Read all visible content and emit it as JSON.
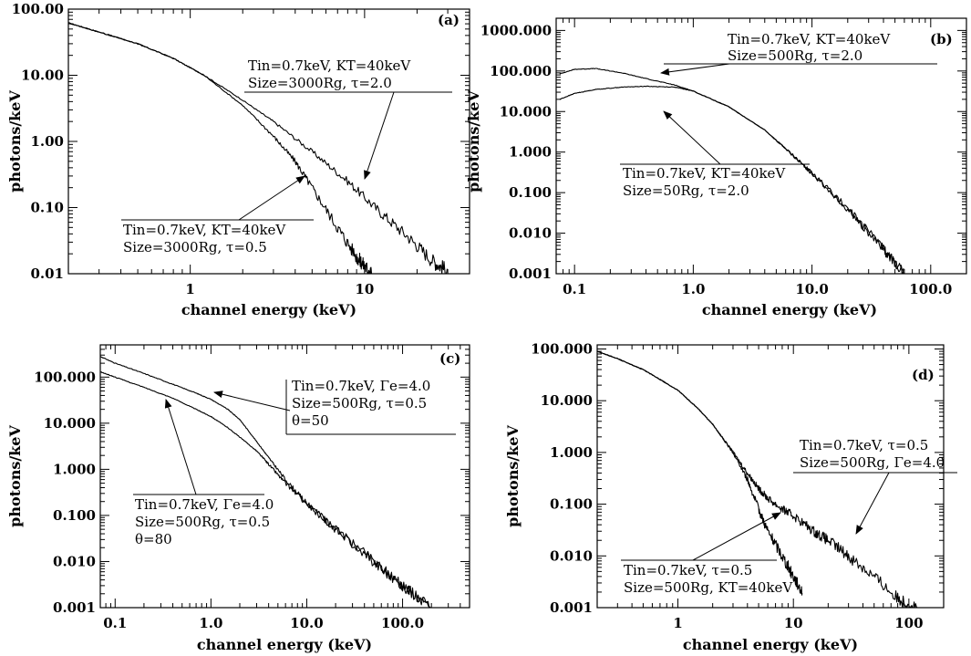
{
  "chart_data": [
    {
      "id": "a",
      "type": "line",
      "panel_label": "(a)",
      "xlabel": "channel energy (keV)",
      "ylabel": "photons/keV",
      "xscale": "log",
      "yscale": "log",
      "xlim": [
        0.2,
        40
      ],
      "ylim": [
        0.01,
        100
      ],
      "xticks": [
        {
          "v": 1,
          "label": "1"
        },
        {
          "v": 10,
          "label": "10"
        }
      ],
      "yticks": [
        {
          "v": 100,
          "label": "100.00"
        },
        {
          "v": 10,
          "label": "10.00"
        },
        {
          "v": 1,
          "label": "1.00"
        },
        {
          "v": 0.1,
          "label": "0.10"
        },
        {
          "v": 0.01,
          "label": "0.01"
        }
      ],
      "series": [
        {
          "x": [
            0.2,
            0.3,
            0.5,
            0.8,
            1.2,
            2,
            3,
            5,
            8,
            12,
            18,
            25,
            30
          ],
          "y": [
            62,
            45,
            30,
            18,
            10,
            4.2,
            2,
            0.7,
            0.25,
            0.09,
            0.035,
            0.015,
            0.011
          ]
        },
        {
          "x": [
            0.2,
            0.3,
            0.5,
            0.8,
            1.2,
            2,
            3,
            4,
            5,
            7,
            9,
            10,
            11
          ],
          "y": [
            62,
            45,
            30,
            18,
            10,
            3.5,
            1.2,
            0.5,
            0.2,
            0.05,
            0.018,
            0.013,
            0.01
          ]
        }
      ],
      "annotations": [
        {
          "lines": [
            "Tin=0.7keV, KT=40keV",
            "Size=3000Rg, τ=2.0"
          ],
          "arrow_to": [
            7.0,
            0.2
          ]
        },
        {
          "lines": [
            "Tin=0.7keV, KT=40keV",
            "Size=3000Rg, τ=0.5"
          ],
          "arrow_to": [
            5.0,
            0.2
          ]
        }
      ]
    },
    {
      "id": "b",
      "type": "line",
      "panel_label": "(b)",
      "xlabel": "channel energy (keV)",
      "ylabel": "photons/keV",
      "xscale": "log",
      "yscale": "log",
      "xlim": [
        0.07,
        200
      ],
      "ylim": [
        0.001,
        2000
      ],
      "xticks": [
        {
          "v": 0.1,
          "label": "0.1"
        },
        {
          "v": 1,
          "label": "1.0"
        },
        {
          "v": 10,
          "label": "10.0"
        },
        {
          "v": 100,
          "label": "100.0"
        }
      ],
      "yticks": [
        {
          "v": 1000,
          "label": "1000.000"
        },
        {
          "v": 100,
          "label": "100.000"
        },
        {
          "v": 10,
          "label": "10.000"
        },
        {
          "v": 1,
          "label": "1.000"
        },
        {
          "v": 0.1,
          "label": "0.100"
        },
        {
          "v": 0.01,
          "label": "0.010"
        },
        {
          "v": 0.001,
          "label": "0.001"
        }
      ],
      "series": [
        {
          "x": [
            0.075,
            0.1,
            0.15,
            0.25,
            0.4,
            0.7,
            1,
            2,
            4,
            7,
            10,
            20,
            40,
            60
          ],
          "y": [
            85,
            110,
            115,
            90,
            65,
            45,
            32,
            13,
            3.5,
            0.8,
            0.3,
            0.04,
            0.004,
            0.001
          ]
        },
        {
          "x": [
            0.075,
            0.1,
            0.15,
            0.25,
            0.4,
            0.7,
            1,
            2,
            4,
            7,
            10,
            20,
            40,
            60
          ],
          "y": [
            20,
            28,
            35,
            40,
            42,
            40,
            32,
            13,
            3.5,
            0.8,
            0.3,
            0.04,
            0.004,
            0.001
          ]
        }
      ],
      "annotations": [
        {
          "lines": [
            "Tin=0.7keV, KT=40keV",
            "Size=500Rg, τ=2.0"
          ],
          "arrow_to": [
            0.28,
            90
          ]
        },
        {
          "lines": [
            "Tin=0.7keV, KT=40keV",
            "Size=50Rg, τ=2.0"
          ],
          "arrow_to": [
            0.9,
            35
          ]
        }
      ]
    },
    {
      "id": "c",
      "type": "line",
      "panel_label": "(c)",
      "xlabel": "channel energy (keV)",
      "ylabel": "photons/keV",
      "xscale": "log",
      "yscale": "log",
      "xlim": [
        0.07,
        500
      ],
      "ylim": [
        0.001,
        500
      ],
      "xticks": [
        {
          "v": 0.1,
          "label": "0.1"
        },
        {
          "v": 1,
          "label": "1.0"
        },
        {
          "v": 10,
          "label": "10.0"
        },
        {
          "v": 100,
          "label": "100.0"
        }
      ],
      "yticks": [
        {
          "v": 100,
          "label": "100.000"
        },
        {
          "v": 10,
          "label": "10.000"
        },
        {
          "v": 1,
          "label": "1.000"
        },
        {
          "v": 0.1,
          "label": "0.100"
        },
        {
          "v": 0.01,
          "label": "0.010"
        },
        {
          "v": 0.001,
          "label": "0.001"
        }
      ],
      "series": [
        {
          "x": [
            0.07,
            0.1,
            0.2,
            0.4,
            0.7,
            1,
            1.5,
            2,
            3,
            4,
            6,
            10,
            20,
            50,
            100,
            200
          ],
          "y": [
            280,
            200,
            120,
            70,
            45,
            33,
            20,
            12,
            4,
            1.8,
            0.6,
            0.18,
            0.05,
            0.01,
            0.003,
            0.001
          ]
        },
        {
          "x": [
            0.07,
            0.1,
            0.2,
            0.4,
            0.7,
            1,
            1.5,
            2,
            3,
            4,
            6,
            10,
            20,
            50,
            100,
            200
          ],
          "y": [
            130,
            100,
            60,
            35,
            20,
            14,
            8,
            5,
            2.5,
            1.3,
            0.5,
            0.18,
            0.05,
            0.01,
            0.003,
            0.001
          ]
        }
      ],
      "annotations": [
        {
          "lines": [
            "Tin=0.7keV, Γe=4.0",
            "Size=500Rg, τ=0.5",
            "θ=50"
          ],
          "arrow_to": [
            0.9,
            45
          ]
        },
        {
          "lines": [
            "Tin=0.7keV, Γe=4.0",
            "Size=500Rg, τ=0.5",
            "θ=80"
          ],
          "arrow_to": [
            0.35,
            38
          ]
        }
      ]
    },
    {
      "id": "d",
      "type": "line",
      "panel_label": "(d)",
      "xlabel": "channel energy (keV)",
      "ylabel": "photons/keV",
      "xscale": "log",
      "yscale": "log",
      "xlim": [
        0.2,
        200
      ],
      "ylim": [
        0.001,
        120
      ],
      "xticks": [
        {
          "v": 1,
          "label": "1"
        },
        {
          "v": 10,
          "label": "10"
        },
        {
          "v": 100,
          "label": "100"
        }
      ],
      "yticks": [
        {
          "v": 100,
          "label": "100.000"
        },
        {
          "v": 10,
          "label": "10.000"
        },
        {
          "v": 1,
          "label": "1.000"
        },
        {
          "v": 0.1,
          "label": "0.100"
        },
        {
          "v": 0.01,
          "label": "0.010"
        },
        {
          "v": 0.001,
          "label": "0.001"
        }
      ],
      "series": [
        {
          "x": [
            0.2,
            0.3,
            0.5,
            1,
            1.5,
            2,
            3,
            4,
            5,
            6,
            8,
            10,
            15,
            20,
            30,
            50,
            80,
            120
          ],
          "y": [
            90,
            65,
            40,
            16,
            7,
            3.5,
            1,
            0.4,
            0.2,
            0.13,
            0.08,
            0.06,
            0.03,
            0.02,
            0.01,
            0.004,
            0.0015,
            0.001
          ]
        },
        {
          "x": [
            0.2,
            0.3,
            0.5,
            1,
            1.5,
            2,
            3,
            4,
            5,
            6,
            8,
            10,
            12
          ],
          "y": [
            90,
            65,
            40,
            16,
            7,
            3.5,
            1,
            0.3,
            0.08,
            0.03,
            0.01,
            0.004,
            0.002
          ]
        }
      ],
      "annotations": [
        {
          "lines": [
            "Tin=0.7keV, τ=0.5",
            "Size=500Rg, Γe=4.0"
          ],
          "arrow_to": [
            22,
            0.02
          ]
        },
        {
          "lines": [
            "Tin=0.7keV, τ=0.5",
            "Size=500Rg, KT=40keV"
          ],
          "arrow_to": [
            7,
            0.04
          ]
        }
      ]
    }
  ]
}
